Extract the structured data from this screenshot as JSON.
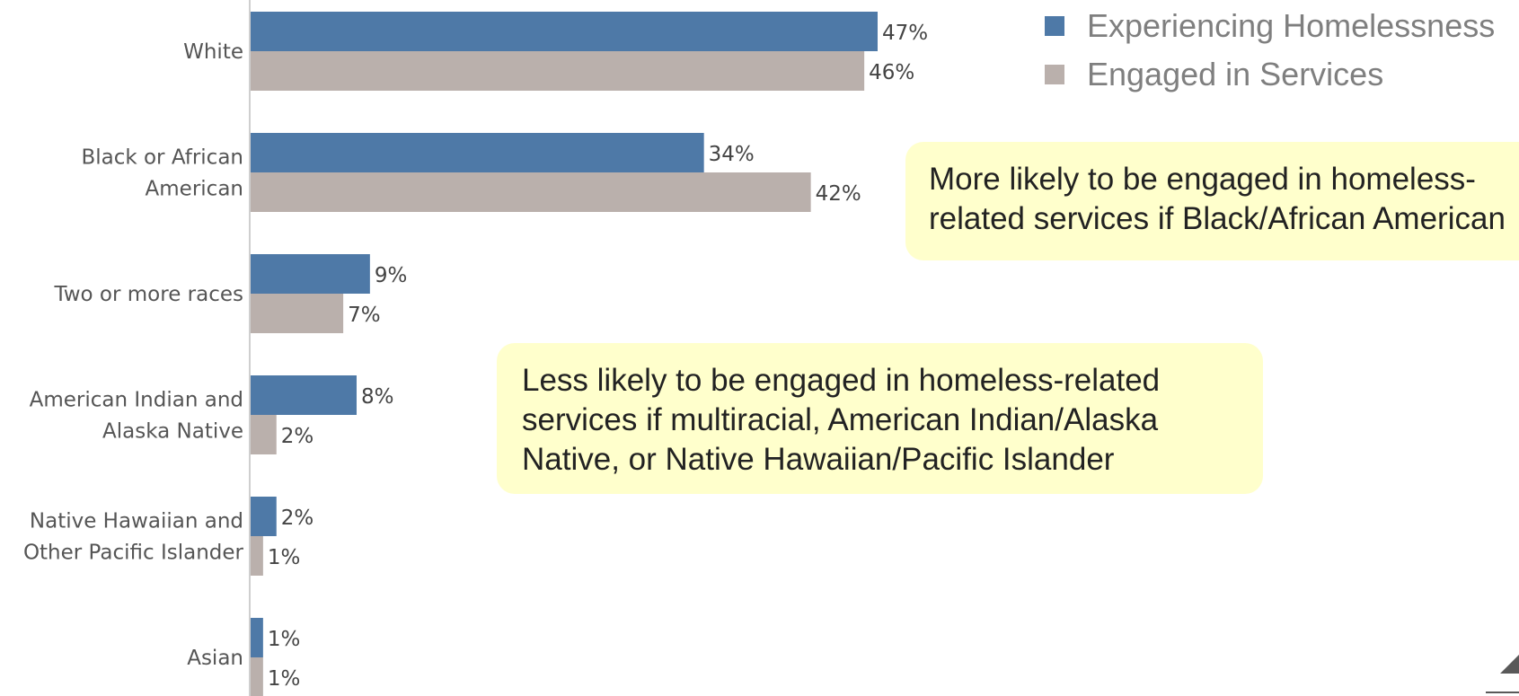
{
  "chart_data": {
    "type": "bar",
    "orientation": "horizontal",
    "categories": [
      [
        "White"
      ],
      [
        "Black or African",
        "American"
      ],
      [
        "Two or more races"
      ],
      [
        "American Indian and",
        "Alaska Native"
      ],
      [
        "Native Hawaiian and",
        "Other Pacific Islander"
      ],
      [
        "Asian"
      ]
    ],
    "series": [
      {
        "name": "Experiencing Homelessness",
        "color": "#4e79a7",
        "values": [
          47,
          34,
          9,
          8,
          2,
          1
        ],
        "labels": [
          "47%",
          "34%",
          "9%",
          "8%",
          "2%",
          "1%"
        ]
      },
      {
        "name": "Engaged in Services",
        "color": "#bab0ac",
        "values": [
          46,
          42,
          7,
          2,
          1,
          1
        ],
        "labels": [
          "46%",
          "42%",
          "7%",
          "2%",
          "1%",
          "1%"
        ]
      }
    ],
    "xlim": [
      0,
      47
    ],
    "grid": false,
    "legend_position": "top-right"
  },
  "annotations": {
    "callout_1": [
      "More likely to be engaged in homeless-",
      "related services if Black/African American"
    ],
    "callout_2": "Less likely to be engaged in homeless-related services if multiracial, American Indian/Alaska Native, or Native Hawaiian/Pacific Islander"
  }
}
